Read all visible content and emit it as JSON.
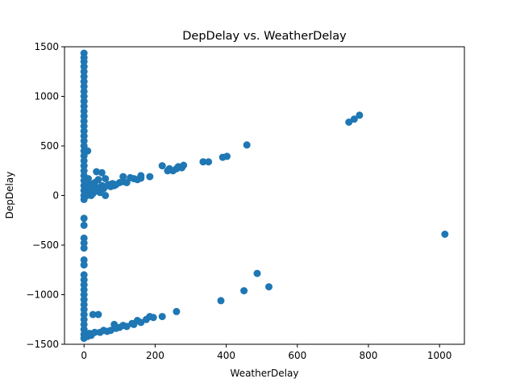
{
  "chart_data": {
    "type": "scatter",
    "title": "DepDelay vs. WeatherDelay",
    "xlabel": "WeatherDelay",
    "ylabel": "DepDelay",
    "xlim": [
      -55,
      1070
    ],
    "ylim": [
      -1500,
      1500
    ],
    "x_ticks": [
      0,
      200,
      400,
      600,
      800,
      1000
    ],
    "y_ticks": [
      -1500,
      -1000,
      -500,
      0,
      500,
      1000,
      1500
    ],
    "grid": false,
    "legend": "none",
    "marker_color": "#1f77b4",
    "points": [
      {
        "x": 0,
        "y": 1435
      },
      {
        "x": 0,
        "y": 1390
      },
      {
        "x": 0,
        "y": 1350
      },
      {
        "x": 0,
        "y": 1300
      },
      {
        "x": 0,
        "y": 1250
      },
      {
        "x": 0,
        "y": 1200
      },
      {
        "x": 0,
        "y": 1150
      },
      {
        "x": 0,
        "y": 1100
      },
      {
        "x": 0,
        "y": 1050
      },
      {
        "x": 0,
        "y": 1000
      },
      {
        "x": 0,
        "y": 950
      },
      {
        "x": 0,
        "y": 900
      },
      {
        "x": 0,
        "y": 850
      },
      {
        "x": 0,
        "y": 800
      },
      {
        "x": 0,
        "y": 750
      },
      {
        "x": 0,
        "y": 700
      },
      {
        "x": 0,
        "y": 650
      },
      {
        "x": 0,
        "y": 600
      },
      {
        "x": 0,
        "y": 550
      },
      {
        "x": 0,
        "y": 500
      },
      {
        "x": 0,
        "y": 450
      },
      {
        "x": 0,
        "y": 400
      },
      {
        "x": 0,
        "y": 350
      },
      {
        "x": 0,
        "y": 300
      },
      {
        "x": 0,
        "y": 250
      },
      {
        "x": 0,
        "y": 200
      },
      {
        "x": 0,
        "y": 150
      },
      {
        "x": 0,
        "y": 100
      },
      {
        "x": 0,
        "y": 50
      },
      {
        "x": 0,
        "y": 0
      },
      {
        "x": 0,
        "y": -40
      },
      {
        "x": 0,
        "y": -230
      },
      {
        "x": 0,
        "y": -300
      },
      {
        "x": 0,
        "y": -430
      },
      {
        "x": 0,
        "y": -480
      },
      {
        "x": 0,
        "y": -530
      },
      {
        "x": 0,
        "y": -650
      },
      {
        "x": 0,
        "y": -700
      },
      {
        "x": 0,
        "y": -800
      },
      {
        "x": 0,
        "y": -850
      },
      {
        "x": 0,
        "y": -900
      },
      {
        "x": 0,
        "y": -950
      },
      {
        "x": 0,
        "y": -1000
      },
      {
        "x": 0,
        "y": -1050
      },
      {
        "x": 0,
        "y": -1100
      },
      {
        "x": 0,
        "y": -1150
      },
      {
        "x": 0,
        "y": -1200
      },
      {
        "x": 0,
        "y": -1250
      },
      {
        "x": 0,
        "y": -1300
      },
      {
        "x": 0,
        "y": -1350
      },
      {
        "x": 0,
        "y": -1400
      },
      {
        "x": 0,
        "y": -1440
      },
      {
        "x": 5,
        "y": 150
      },
      {
        "x": 5,
        "y": 60
      },
      {
        "x": 8,
        "y": 100
      },
      {
        "x": 8,
        "y": 0
      },
      {
        "x": 10,
        "y": 450
      },
      {
        "x": 12,
        "y": 170
      },
      {
        "x": 15,
        "y": 120
      },
      {
        "x": 15,
        "y": 30
      },
      {
        "x": 20,
        "y": 60
      },
      {
        "x": 20,
        "y": 0
      },
      {
        "x": 25,
        "y": 100
      },
      {
        "x": 25,
        "y": 20
      },
      {
        "x": 30,
        "y": 130
      },
      {
        "x": 30,
        "y": 40
      },
      {
        "x": 35,
        "y": 240
      },
      {
        "x": 35,
        "y": 80
      },
      {
        "x": 40,
        "y": 160
      },
      {
        "x": 40,
        "y": 60
      },
      {
        "x": 45,
        "y": 30
      },
      {
        "x": 50,
        "y": 230
      },
      {
        "x": 50,
        "y": 100
      },
      {
        "x": 55,
        "y": 70
      },
      {
        "x": 60,
        "y": 170
      },
      {
        "x": 60,
        "y": 0
      },
      {
        "x": 65,
        "y": 100
      },
      {
        "x": 70,
        "y": 110
      },
      {
        "x": 75,
        "y": 90
      },
      {
        "x": 80,
        "y": 120
      },
      {
        "x": 85,
        "y": 100
      },
      {
        "x": 90,
        "y": 110
      },
      {
        "x": 100,
        "y": 130
      },
      {
        "x": 110,
        "y": 190
      },
      {
        "x": 110,
        "y": 140
      },
      {
        "x": 120,
        "y": 130
      },
      {
        "x": 130,
        "y": 180
      },
      {
        "x": 140,
        "y": 170
      },
      {
        "x": 150,
        "y": 160
      },
      {
        "x": 160,
        "y": 200
      },
      {
        "x": 160,
        "y": 175
      },
      {
        "x": 185,
        "y": 190
      },
      {
        "x": 220,
        "y": 300
      },
      {
        "x": 235,
        "y": 250
      },
      {
        "x": 240,
        "y": 270
      },
      {
        "x": 250,
        "y": 250
      },
      {
        "x": 260,
        "y": 270
      },
      {
        "x": 265,
        "y": 290
      },
      {
        "x": 275,
        "y": 280
      },
      {
        "x": 280,
        "y": 305
      },
      {
        "x": 335,
        "y": 340
      },
      {
        "x": 350,
        "y": 340
      },
      {
        "x": 390,
        "y": 385
      },
      {
        "x": 402,
        "y": 395
      },
      {
        "x": 458,
        "y": 510
      },
      {
        "x": 745,
        "y": 740
      },
      {
        "x": 760,
        "y": 770
      },
      {
        "x": 775,
        "y": 810
      },
      {
        "x": 1015,
        "y": -390
      },
      {
        "x": 5,
        "y": -1400
      },
      {
        "x": 10,
        "y": -1420
      },
      {
        "x": 15,
        "y": -1390
      },
      {
        "x": 20,
        "y": -1410
      },
      {
        "x": 25,
        "y": -1200
      },
      {
        "x": 30,
        "y": -1380
      },
      {
        "x": 40,
        "y": -1200
      },
      {
        "x": 45,
        "y": -1380
      },
      {
        "x": 55,
        "y": -1360
      },
      {
        "x": 65,
        "y": -1370
      },
      {
        "x": 75,
        "y": -1360
      },
      {
        "x": 85,
        "y": -1300
      },
      {
        "x": 90,
        "y": -1340
      },
      {
        "x": 100,
        "y": -1330
      },
      {
        "x": 110,
        "y": -1310
      },
      {
        "x": 120,
        "y": -1320
      },
      {
        "x": 135,
        "y": -1290
      },
      {
        "x": 140,
        "y": -1300
      },
      {
        "x": 150,
        "y": -1260
      },
      {
        "x": 160,
        "y": -1280
      },
      {
        "x": 175,
        "y": -1250
      },
      {
        "x": 185,
        "y": -1220
      },
      {
        "x": 195,
        "y": -1230
      },
      {
        "x": 220,
        "y": -1220
      },
      {
        "x": 260,
        "y": -1170
      },
      {
        "x": 385,
        "y": -1060
      },
      {
        "x": 450,
        "y": -960
      },
      {
        "x": 487,
        "y": -785
      },
      {
        "x": 520,
        "y": -920
      }
    ]
  }
}
